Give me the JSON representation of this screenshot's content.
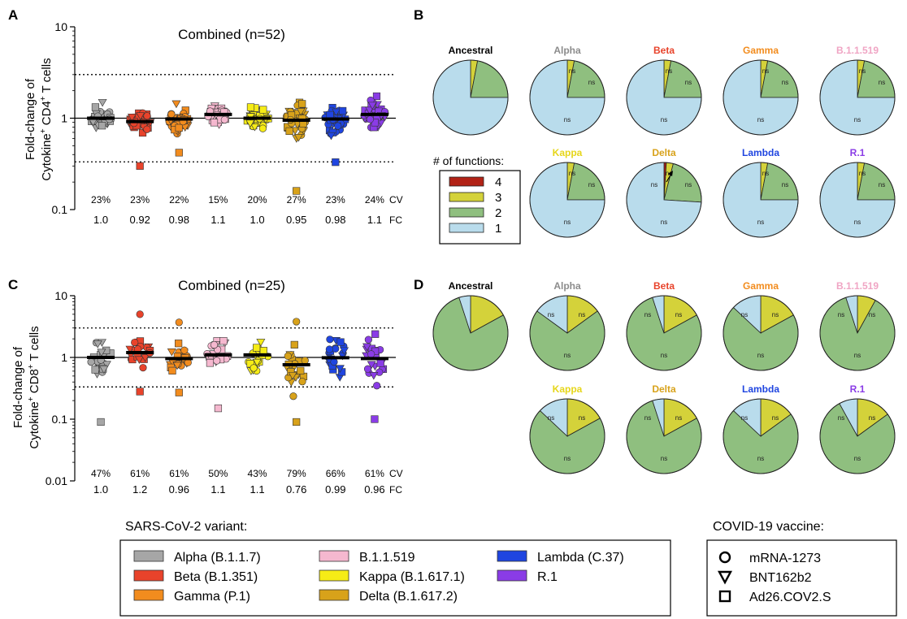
{
  "panel_letters": [
    "A",
    "B",
    "C",
    "D"
  ],
  "variant_colors": [
    "#a6a6a6",
    "#e8432b",
    "#f28c1e",
    "#f5b8cf",
    "#f6ec16",
    "#d8a21a",
    "#1f45e0",
    "#8a3ce6"
  ],
  "function_colors": {
    "4": "#b22216",
    "3": "#d4d23a",
    "2": "#8fbf7f",
    "1": "#b9dcec"
  },
  "chart_data": [
    {
      "type": "scatter",
      "panel": "A",
      "title": "Combined (n=52)",
      "ylabel": "Fold-change of Cytokine⁺ CD4⁺ T cells",
      "yscale": "log",
      "ylim": [
        0.1,
        10
      ],
      "yticks": [
        "10",
        "1",
        "0.1"
      ],
      "reference_lines": [
        3,
        1,
        0.333
      ],
      "categories": [
        "Alpha",
        "Beta",
        "Gamma",
        "B.1.1.519",
        "Kappa",
        "Delta",
        "Lambda",
        "R.1"
      ],
      "cv_label": "CV",
      "fc_label": "FC",
      "cv": [
        "23%",
        "23%",
        "22%",
        "15%",
        "20%",
        "27%",
        "23%",
        "24%"
      ],
      "fc": [
        "1.0",
        "0.92",
        "0.98",
        "1.1",
        "1.0",
        "0.95",
        "0.98",
        "1.1"
      ],
      "median": [
        1.0,
        0.92,
        0.98,
        1.1,
        1.0,
        0.95,
        0.98,
        1.1
      ],
      "spread_low": [
        0.75,
        0.62,
        0.6,
        0.8,
        0.65,
        0.5,
        0.6,
        0.7
      ],
      "spread_high": [
        1.8,
        1.35,
        1.6,
        1.5,
        1.6,
        1.8,
        1.5,
        2.0
      ],
      "outliers": [
        [],
        [
          0.3
        ],
        [
          0.42
        ],
        [],
        [],
        [
          0.16
        ],
        [
          0.33
        ],
        []
      ]
    },
    {
      "type": "scatter",
      "panel": "C",
      "title": "Combined (n=25)",
      "ylabel": "Fold-change of Cytokine⁺ CD8⁺ T cells",
      "yscale": "log",
      "ylim": [
        0.01,
        10
      ],
      "yticks": [
        "10",
        "1",
        "0.1",
        "0.01"
      ],
      "reference_lines": [
        3,
        1,
        0.333
      ],
      "categories": [
        "Alpha",
        "Beta",
        "Gamma",
        "B.1.1.519",
        "Kappa",
        "Delta",
        "Lambda",
        "R.1"
      ],
      "cv_label": "CV",
      "fc_label": "FC",
      "cv": [
        "47%",
        "61%",
        "61%",
        "50%",
        "43%",
        "79%",
        "66%",
        "61%"
      ],
      "fc": [
        "1.0",
        "1.2",
        "0.96",
        "1.1",
        "1.1",
        "0.76",
        "0.99",
        "0.96"
      ],
      "median": [
        1.0,
        1.2,
        0.96,
        1.1,
        1.1,
        0.76,
        0.99,
        0.96
      ],
      "spread_low": [
        0.35,
        0.55,
        0.35,
        0.5,
        0.38,
        0.2,
        0.22,
        0.3
      ],
      "spread_high": [
        2.5,
        2.6,
        2.3,
        2.5,
        2.4,
        2.7,
        3.3,
        3.2
      ],
      "outliers": [
        [
          0.09
        ],
        [
          0.28,
          5.0
        ],
        [
          0.27,
          3.7
        ],
        [
          0.15
        ],
        [],
        [
          0.09,
          3.8
        ],
        [],
        [
          0.1
        ]
      ]
    },
    {
      "type": "pie",
      "panel": "B",
      "legend_title": "# of functions:",
      "legend_entries": [
        "4",
        "3",
        "2",
        "1"
      ],
      "pies": [
        {
          "label": "Ancestral",
          "label_color": "#000000",
          "slices": [
            0,
            0.03,
            0.22,
            0.75
          ],
          "ns": []
        },
        {
          "label": "Alpha",
          "label_color": "#8c8c8c",
          "slices": [
            0,
            0.03,
            0.22,
            0.75
          ],
          "ns": [
            "ns",
            "ns",
            "ns"
          ]
        },
        {
          "label": "Beta",
          "label_color": "#e8432b",
          "slices": [
            0,
            0.03,
            0.22,
            0.75
          ],
          "ns": [
            "ns",
            "ns",
            "ns"
          ]
        },
        {
          "label": "Gamma",
          "label_color": "#f28c1e",
          "slices": [
            0,
            0.03,
            0.22,
            0.75
          ],
          "ns": [
            "ns",
            "ns",
            "ns"
          ]
        },
        {
          "label": "B.1.1.519",
          "label_color": "#f0a5c4",
          "slices": [
            0,
            0.03,
            0.22,
            0.75
          ],
          "ns": [
            "ns",
            "ns",
            "ns"
          ]
        },
        {
          "label": "Kappa",
          "label_color": "#e6d61a",
          "slices": [
            0,
            0.03,
            0.22,
            0.75
          ],
          "ns": [
            "ns",
            "ns",
            "ns"
          ]
        },
        {
          "label": "Delta",
          "label_color": "#d8a21a",
          "slices": [
            0.01,
            0.03,
            0.22,
            0.74
          ],
          "ns": [
            "ns",
            "ns",
            "ns",
            "ns"
          ]
        },
        {
          "label": "Lambda",
          "label_color": "#1f45e0",
          "slices": [
            0,
            0.03,
            0.22,
            0.75
          ],
          "ns": [
            "ns",
            "ns",
            "ns"
          ]
        },
        {
          "label": "R.1",
          "label_color": "#8a3ce6",
          "slices": [
            0,
            0.03,
            0.22,
            0.75
          ],
          "ns": [
            "ns",
            "ns",
            "ns"
          ]
        }
      ]
    },
    {
      "type": "pie",
      "panel": "D",
      "pies": [
        {
          "label": "Ancestral",
          "label_color": "#000000",
          "slices": [
            0,
            0.17,
            0.78,
            0.05
          ],
          "ns": []
        },
        {
          "label": "Alpha",
          "label_color": "#8c8c8c",
          "slices": [
            0,
            0.15,
            0.7,
            0.15
          ],
          "ns": [
            "ns",
            "ns",
            "ns"
          ]
        },
        {
          "label": "Beta",
          "label_color": "#e8432b",
          "slices": [
            0,
            0.17,
            0.78,
            0.05
          ],
          "ns": [
            "ns",
            "ns",
            "ns"
          ]
        },
        {
          "label": "Gamma",
          "label_color": "#f28c1e",
          "slices": [
            0,
            0.17,
            0.7,
            0.13
          ],
          "ns": [
            "ns",
            "ns",
            "ns"
          ]
        },
        {
          "label": "B.1.1.519",
          "label_color": "#f0a5c4",
          "slices": [
            0,
            0.08,
            0.87,
            0.05
          ],
          "ns": [
            "ns",
            "ns",
            "ns"
          ]
        },
        {
          "label": "Kappa",
          "label_color": "#e6d61a",
          "slices": [
            0,
            0.17,
            0.7,
            0.13
          ],
          "ns": [
            "ns",
            "ns",
            "ns"
          ]
        },
        {
          "label": "Delta",
          "label_color": "#d8a21a",
          "slices": [
            0,
            0.17,
            0.78,
            0.05
          ],
          "ns": [
            "ns",
            "ns",
            "ns"
          ]
        },
        {
          "label": "Lambda",
          "label_color": "#1f45e0",
          "slices": [
            0,
            0.15,
            0.72,
            0.13
          ],
          "ns": [
            "ns",
            "ns",
            "ns"
          ]
        },
        {
          "label": "R.1",
          "label_color": "#8a3ce6",
          "slices": [
            0,
            0.15,
            0.77,
            0.08
          ],
          "ns": [
            "ns",
            "ns",
            "ns"
          ]
        }
      ]
    }
  ],
  "variant_legend": {
    "title": "SARS-CoV-2 variant:",
    "items": [
      "Alpha (B.1.1.7)",
      "Beta (B.1.351)",
      "Gamma (P.1)",
      "B.1.1.519",
      "Kappa (B.1.617.1)",
      "Delta (B.1.617.2)",
      "Lambda (C.37)",
      "R.1"
    ]
  },
  "vaccine_legend": {
    "title": "COVID-19 vaccine:",
    "items": [
      {
        "label": "mRNA-1273",
        "marker": "circle"
      },
      {
        "label": "BNT162b2",
        "marker": "triangle-down"
      },
      {
        "label": "Ad26.COV2.S",
        "marker": "square"
      }
    ]
  }
}
